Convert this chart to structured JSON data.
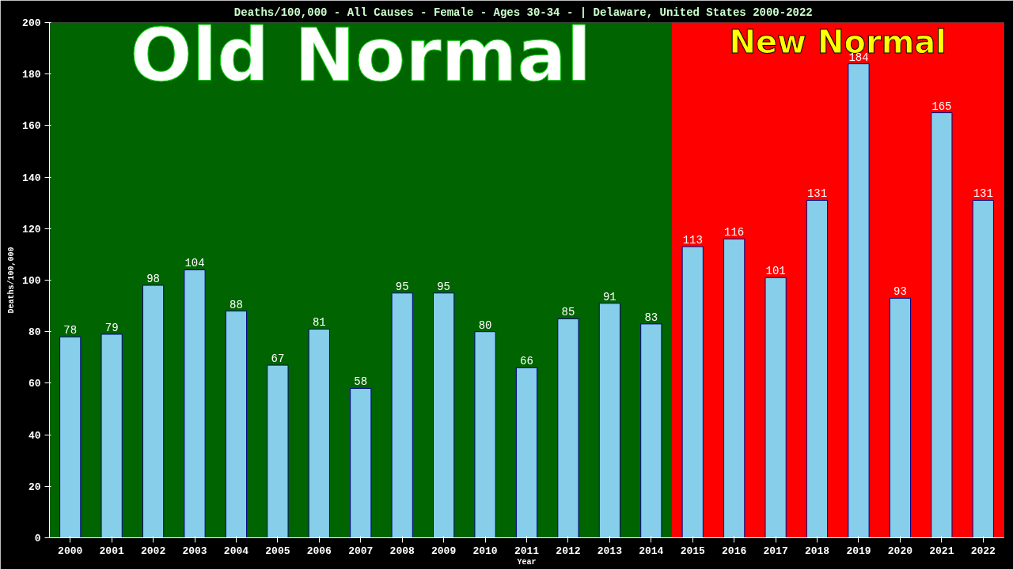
{
  "chart_data": {
    "type": "bar",
    "title": "Deaths/100,000 - All Causes - Female - Ages 30-34 -  | Delaware, United States 2000-2022",
    "xlabel": "Year",
    "ylabel": "Deaths/100,000",
    "categories": [
      "2000",
      "2001",
      "2002",
      "2003",
      "2004",
      "2005",
      "2006",
      "2007",
      "2008",
      "2009",
      "2010",
      "2011",
      "2012",
      "2013",
      "2014",
      "2015",
      "2016",
      "2017",
      "2018",
      "2019",
      "2020",
      "2021",
      "2022"
    ],
    "values": [
      78,
      79,
      98,
      104,
      88,
      67,
      81,
      58,
      95,
      95,
      80,
      66,
      85,
      91,
      83,
      113,
      116,
      101,
      131,
      184,
      93,
      165,
      131
    ],
    "color": "#87ceeb",
    "ylim": [
      0,
      200
    ],
    "yticks": [
      0,
      20,
      40,
      60,
      80,
      100,
      120,
      140,
      160,
      180,
      200
    ],
    "grid": false,
    "data_labels": true,
    "bands": [
      {
        "axis": "x",
        "from": "2000",
        "to": "2014",
        "label": "Old Normal",
        "color": "#006400"
      },
      {
        "axis": "x",
        "from": "2015",
        "to": "2022",
        "label": "New Normal",
        "color": "#ff0000"
      }
    ]
  }
}
